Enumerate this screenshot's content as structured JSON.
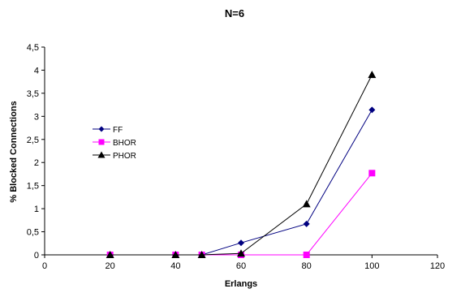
{
  "chart_data": {
    "type": "line",
    "title": "N=6",
    "xlabel": "Erlangs",
    "ylabel": "% Blocked Connections",
    "xlim": [
      0,
      120
    ],
    "ylim": [
      0,
      4.5
    ],
    "x_ticks": [
      "0",
      "20",
      "40",
      "60",
      "80",
      "100",
      "120"
    ],
    "y_ticks": [
      "0",
      "0,5",
      "1",
      "1,5",
      "2",
      "2,5",
      "3",
      "3,5",
      "4",
      "4,5"
    ],
    "grid": false,
    "legend_position": "left-center",
    "series": [
      {
        "name": "FF",
        "color": "#000080",
        "marker": "diamond",
        "x": [
          20,
          40,
          48,
          60,
          80,
          100
        ],
        "y": [
          0,
          0,
          0,
          0.26,
          0.67,
          3.14
        ]
      },
      {
        "name": "BHOR",
        "color": "#ff00ff",
        "marker": "square",
        "x": [
          20,
          40,
          48,
          60,
          80,
          100
        ],
        "y": [
          0,
          0,
          0,
          0,
          0,
          1.77
        ]
      },
      {
        "name": "PHOR",
        "color": "#000000",
        "marker": "triangle",
        "x": [
          20,
          40,
          48,
          60,
          80,
          100
        ],
        "y": [
          0,
          0,
          0,
          0.03,
          1.1,
          3.9
        ]
      }
    ]
  }
}
